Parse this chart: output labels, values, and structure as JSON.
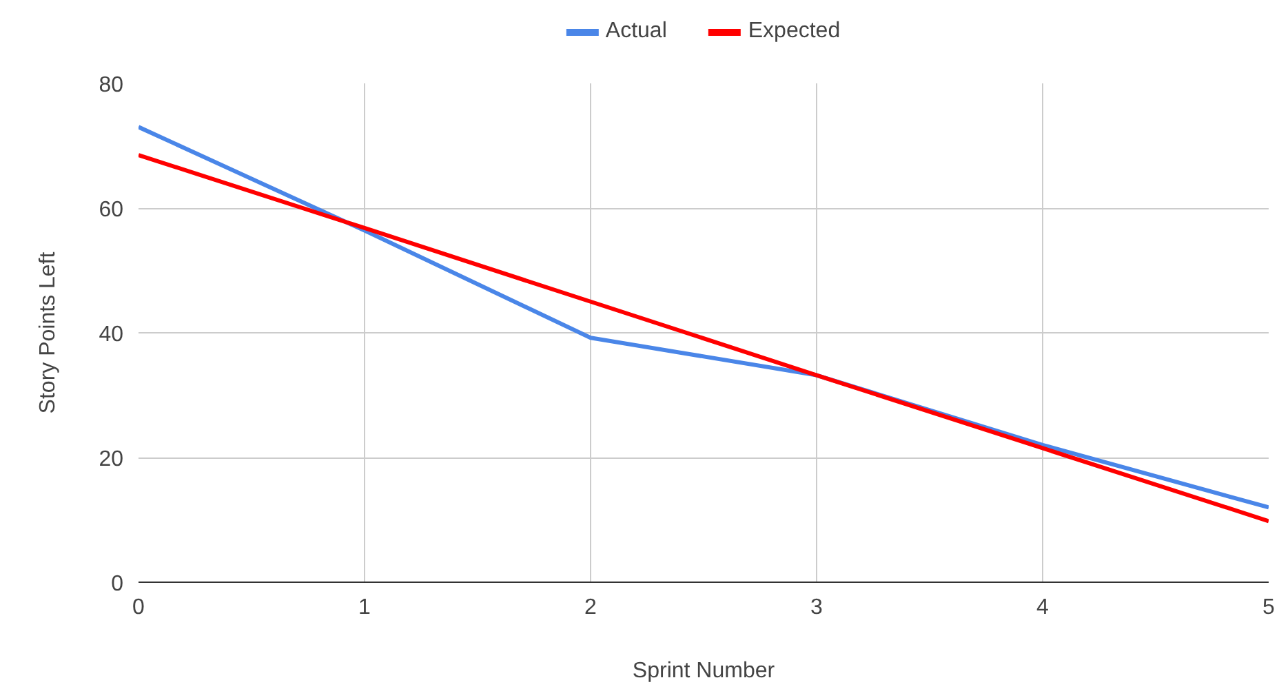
{
  "chart_data": {
    "type": "line",
    "xlabel": "Sprint Number",
    "ylabel": "Story Points Left",
    "x": [
      0,
      1,
      2,
      3,
      4,
      5
    ],
    "series": [
      {
        "name": "Actual",
        "color": "#4a86e8",
        "values": [
          73,
          56.4,
          39.2,
          33.2,
          22,
          12
        ]
      },
      {
        "name": "Expected",
        "color": "#ff0000",
        "values": [
          68.5,
          56.8,
          45,
          33.2,
          21.5,
          9.8
        ]
      }
    ],
    "xlim": [
      0,
      5
    ],
    "xticks": [
      0,
      1,
      2,
      3,
      4,
      5
    ],
    "ylim": [
      0,
      80
    ],
    "yticks": [
      0,
      20,
      40,
      60,
      80
    ],
    "grid": true,
    "legend": "top",
    "marker": "none",
    "line_style": "solid"
  }
}
